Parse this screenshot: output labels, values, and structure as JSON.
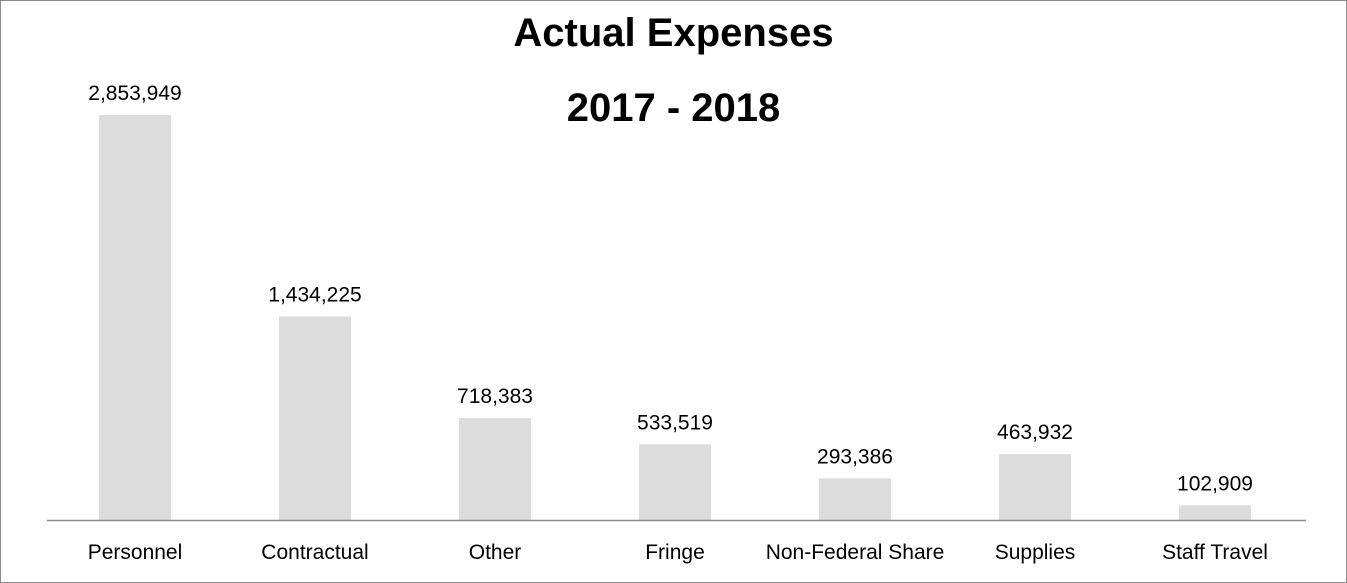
{
  "chart_data": {
    "type": "bar",
    "title": "Actual Expenses",
    "subtitle": "2017 - 2018",
    "xlabel": "",
    "ylabel": "",
    "categories": [
      "Personnel",
      "Contractual",
      "Other",
      "Fringe",
      "Non-Federal Share",
      "Supplies",
      "Staff Travel"
    ],
    "values": [
      2853949,
      1434225,
      718383,
      533519,
      293386,
      463932,
      102909
    ],
    "value_labels": [
      "2,853,949",
      "1,434,225",
      "718,383",
      "533,519",
      "293,386",
      "463,932",
      "102,909"
    ],
    "ylim": [
      0,
      3200000
    ],
    "grid": false,
    "legend": "none",
    "bar_color": "#dcdcdc",
    "axis_color": "#8c8c8c"
  }
}
